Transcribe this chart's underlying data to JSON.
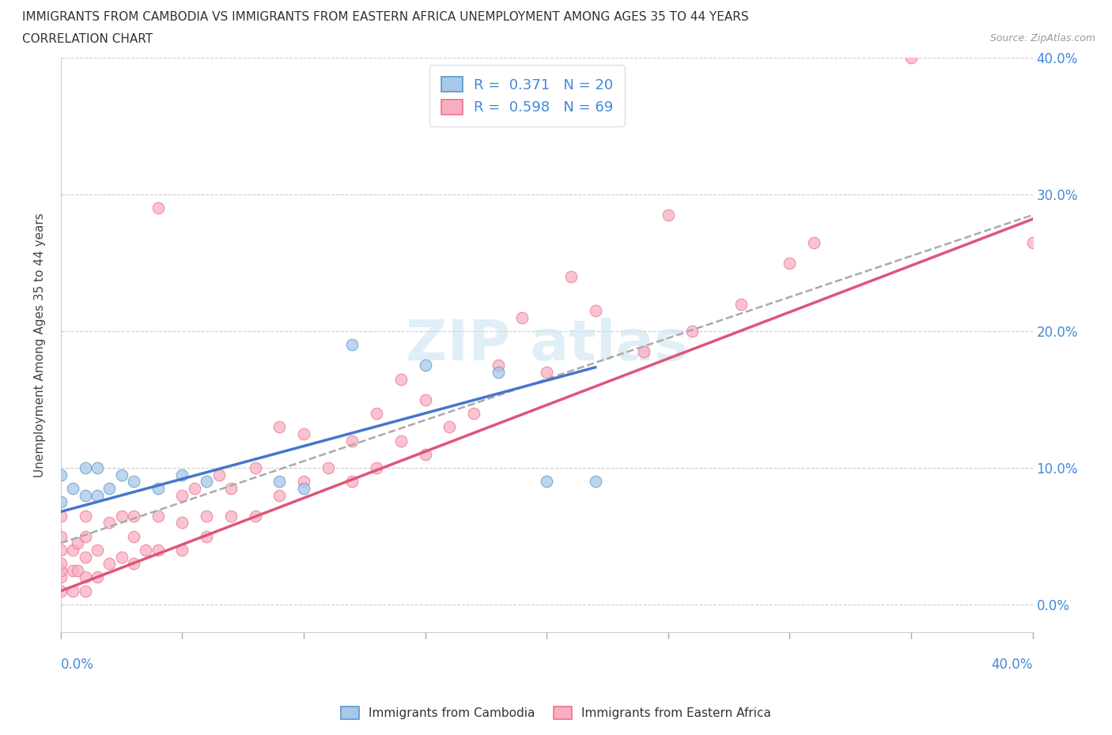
{
  "title_line1": "IMMIGRANTS FROM CAMBODIA VS IMMIGRANTS FROM EASTERN AFRICA UNEMPLOYMENT AMONG AGES 35 TO 44 YEARS",
  "title_line2": "CORRELATION CHART",
  "source": "Source: ZipAtlas.com",
  "ylabel": "Unemployment Among Ages 35 to 44 years",
  "legend_label1": "Immigrants from Cambodia",
  "legend_label2": "Immigrants from Eastern Africa",
  "R1": 0.371,
  "N1": 20,
  "R2": 0.598,
  "N2": 69,
  "color_cambodia_fill": "#a8c8e8",
  "color_cambodia_edge": "#5599cc",
  "color_africa_fill": "#f8b0c0",
  "color_africa_edge": "#ee7090",
  "color_trend_cambodia": "#4477cc",
  "color_trend_africa": "#dd5577",
  "color_trend_gray": "#aaaaaa",
  "xlim": [
    0.0,
    0.4
  ],
  "ylim": [
    -0.02,
    0.4
  ],
  "cam_intercept": 0.068,
  "cam_slope": 0.48,
  "afr_intercept": 0.01,
  "afr_slope": 0.68,
  "gray_intercept": 0.045,
  "gray_slope": 0.6,
  "cambodia_x": [
    0.0,
    0.0,
    0.005,
    0.01,
    0.01,
    0.015,
    0.015,
    0.02,
    0.025,
    0.03,
    0.04,
    0.05,
    0.06,
    0.09,
    0.1,
    0.12,
    0.15,
    0.18,
    0.2,
    0.22
  ],
  "cambodia_y": [
    0.075,
    0.095,
    0.085,
    0.08,
    0.1,
    0.08,
    0.1,
    0.085,
    0.095,
    0.09,
    0.085,
    0.095,
    0.09,
    0.09,
    0.085,
    0.19,
    0.175,
    0.17,
    0.09,
    0.09
  ],
  "africa_x": [
    0.0,
    0.0,
    0.0,
    0.0,
    0.0,
    0.0,
    0.0,
    0.005,
    0.005,
    0.005,
    0.007,
    0.007,
    0.01,
    0.01,
    0.01,
    0.01,
    0.01,
    0.015,
    0.015,
    0.02,
    0.02,
    0.025,
    0.025,
    0.03,
    0.03,
    0.03,
    0.035,
    0.04,
    0.04,
    0.04,
    0.05,
    0.05,
    0.05,
    0.055,
    0.06,
    0.06,
    0.065,
    0.07,
    0.07,
    0.08,
    0.08,
    0.09,
    0.09,
    0.1,
    0.1,
    0.11,
    0.12,
    0.12,
    0.13,
    0.13,
    0.14,
    0.14,
    0.15,
    0.15,
    0.16,
    0.17,
    0.18,
    0.19,
    0.2,
    0.21,
    0.22,
    0.24,
    0.25,
    0.26,
    0.28,
    0.3,
    0.31,
    0.35,
    0.4
  ],
  "africa_y": [
    0.01,
    0.02,
    0.025,
    0.03,
    0.04,
    0.05,
    0.065,
    0.01,
    0.025,
    0.04,
    0.025,
    0.045,
    0.01,
    0.02,
    0.035,
    0.05,
    0.065,
    0.02,
    0.04,
    0.03,
    0.06,
    0.035,
    0.065,
    0.03,
    0.05,
    0.065,
    0.04,
    0.04,
    0.065,
    0.29,
    0.04,
    0.06,
    0.08,
    0.085,
    0.05,
    0.065,
    0.095,
    0.065,
    0.085,
    0.065,
    0.1,
    0.08,
    0.13,
    0.09,
    0.125,
    0.1,
    0.09,
    0.12,
    0.1,
    0.14,
    0.12,
    0.165,
    0.11,
    0.15,
    0.13,
    0.14,
    0.175,
    0.21,
    0.17,
    0.24,
    0.215,
    0.185,
    0.285,
    0.2,
    0.22,
    0.25,
    0.265,
    0.4,
    0.265
  ]
}
